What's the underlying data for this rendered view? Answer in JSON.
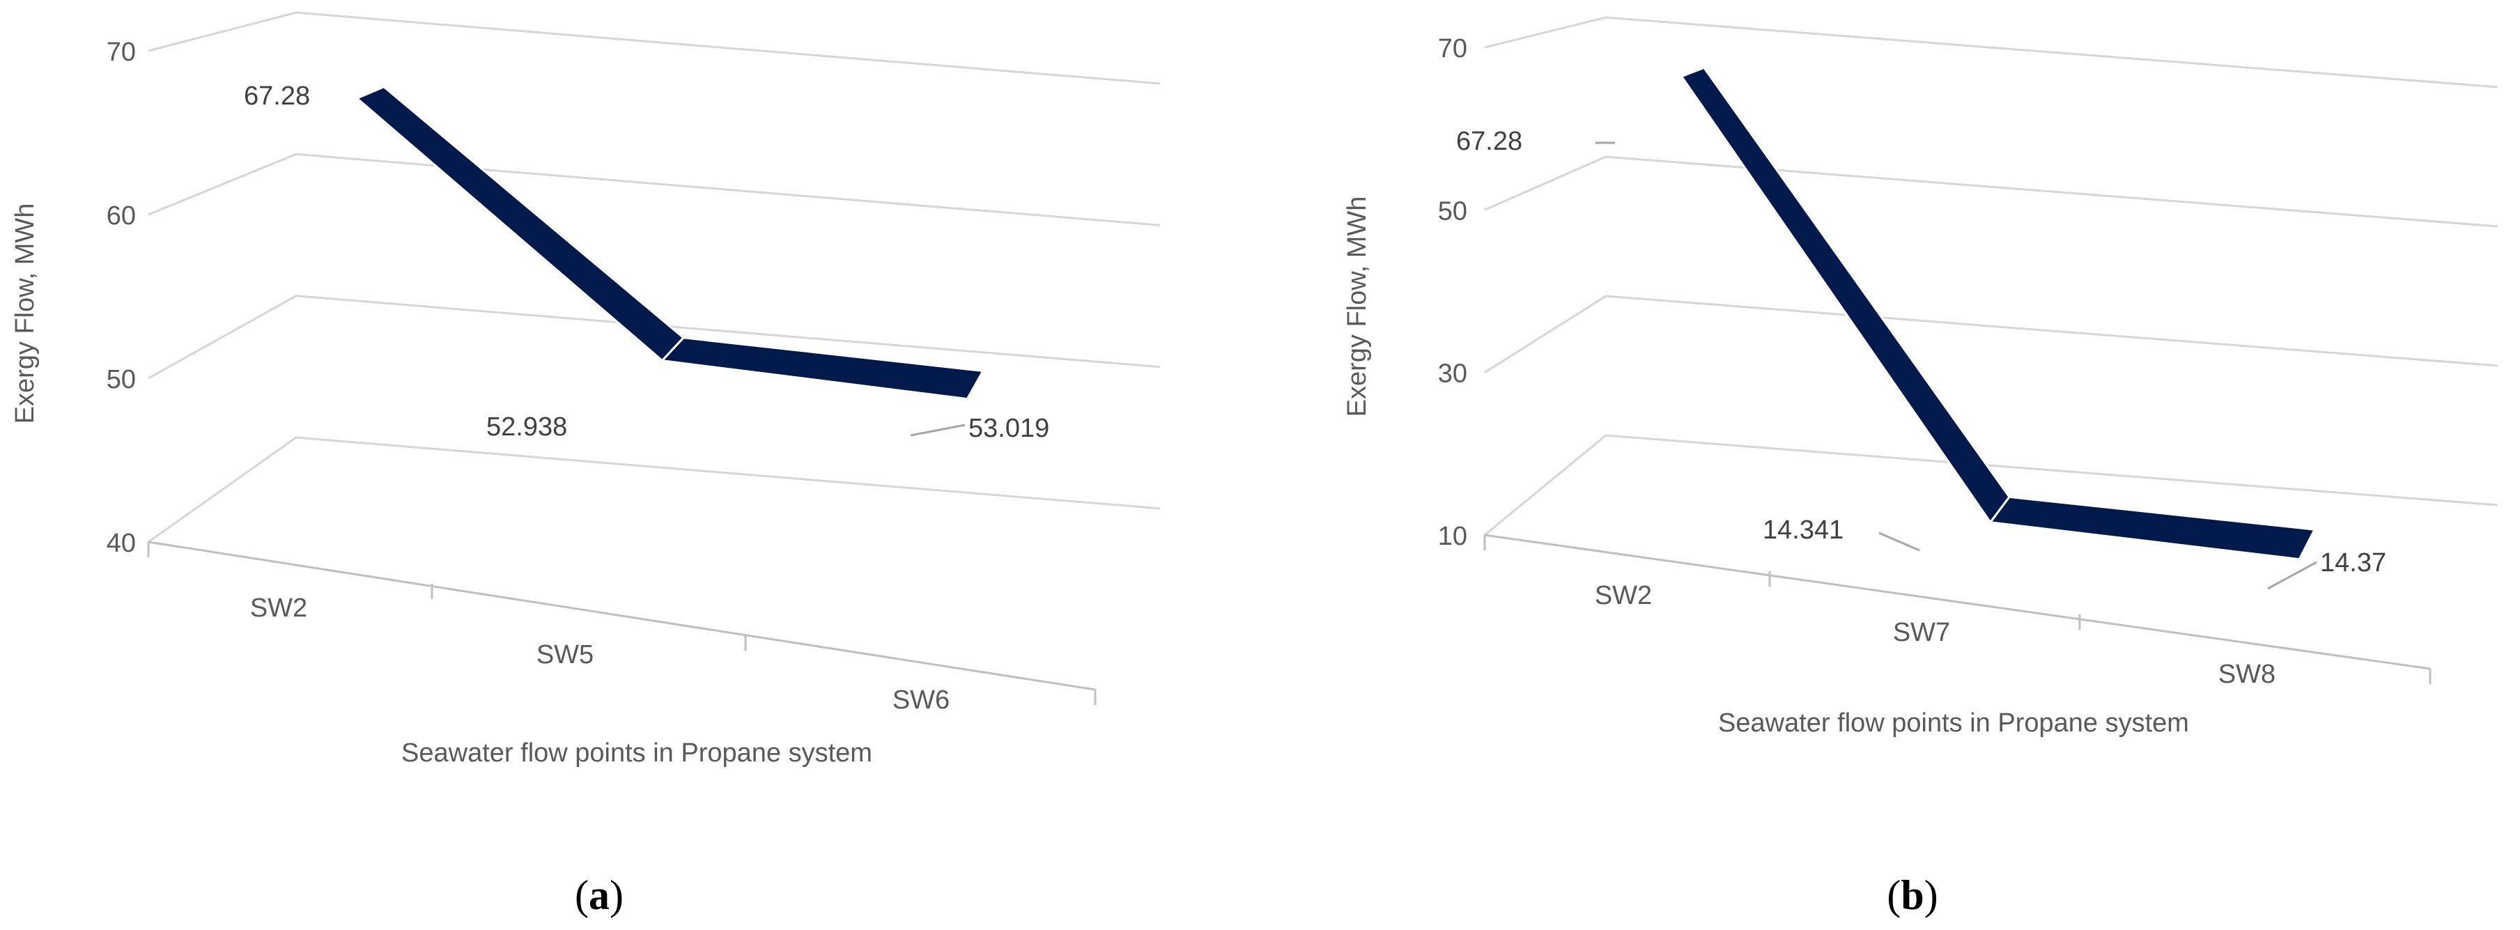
{
  "colors": {
    "series": "#021a4b",
    "grid": "#d6d6d6",
    "text": "#595959"
  },
  "chart_data": [
    {
      "type": "area",
      "subtype": "3d-ribbon",
      "caption_letter": "a",
      "caption_open": "(",
      "caption_close": ")",
      "ylabel": "Exergy Flow, MWh",
      "xlabel": "Seawater flow points in Propane system",
      "categories": [
        "SW2",
        "SW5",
        "SW6"
      ],
      "values": [
        67.28,
        52.938,
        53.019
      ],
      "data_labels": [
        "67.28",
        "52.938",
        "53.019"
      ],
      "yticks": [
        "40",
        "50",
        "60",
        "70"
      ],
      "ylim": [
        40,
        70
      ]
    },
    {
      "type": "area",
      "subtype": "3d-ribbon",
      "caption_letter": "b",
      "caption_open": "(",
      "caption_close": ")",
      "ylabel": "Exergy Flow, MWh",
      "xlabel": "Seawater flow points in Propane system",
      "categories": [
        "SW2",
        "SW7",
        "SW8"
      ],
      "values": [
        67.28,
        14.341,
        14.37
      ],
      "data_labels": [
        "67.28",
        "14.341",
        "14.37"
      ],
      "yticks": [
        "10",
        "30",
        "50",
        "70"
      ],
      "ylim": [
        10,
        70
      ]
    }
  ]
}
